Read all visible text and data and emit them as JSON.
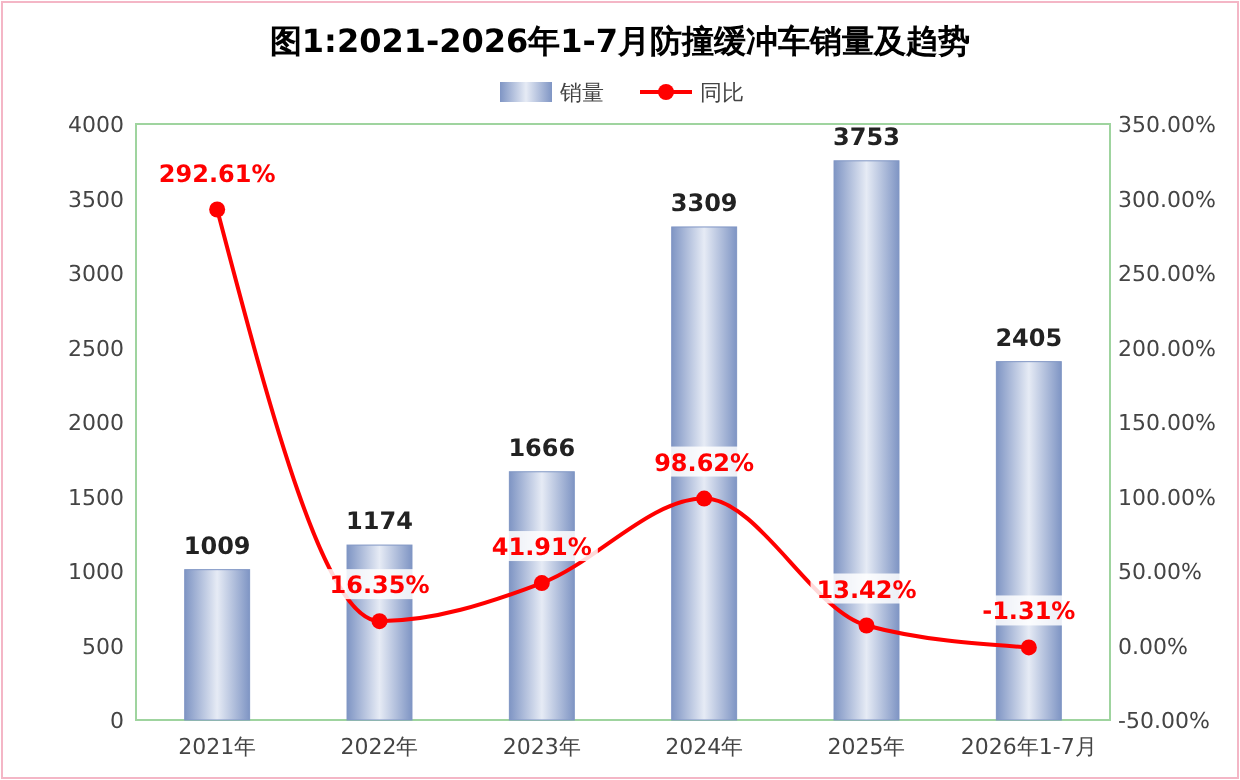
{
  "chart_data": {
    "type": "bar",
    "title": "图1:2021-2026年1-7月防撞缓冲车销量及趋势",
    "categories": [
      "2021年",
      "2022年",
      "2023年",
      "2024年",
      "2025年",
      "2026年1-7月"
    ],
    "series": [
      {
        "name": "销量",
        "color": "#7f95c4",
        "values": [
          1009,
          1174,
          1666,
          3309,
          3753,
          2405
        ],
        "value_labels": [
          "1009",
          "1174",
          "1666",
          "3309",
          "3753",
          "2405"
        ]
      },
      {
        "name": "同比",
        "type": "line",
        "axis": "y2",
        "color": "#ff0000",
        "values": [
          292.61,
          16.35,
          41.91,
          98.62,
          13.42,
          -1.31
        ],
        "value_labels": [
          "292.61%",
          "16.35%",
          "41.91%",
          "98.62%",
          "13.42%",
          "-1.31%"
        ]
      }
    ],
    "ylim": [
      0,
      4000
    ],
    "yticks": [
      0,
      500,
      1000,
      1500,
      2000,
      2500,
      3000,
      3500,
      4000
    ],
    "y2lim": [
      -50,
      350
    ],
    "y2ticks": [
      {
        "value": -50,
        "label": "-50.00%"
      },
      {
        "value": 0,
        "label": "0.00%"
      },
      {
        "value": 50,
        "label": "50.00%"
      },
      {
        "value": 100,
        "label": "100.00%"
      },
      {
        "value": 150,
        "label": "150.00%"
      },
      {
        "value": 200,
        "label": "200.00%"
      },
      {
        "value": 250,
        "label": "250.00%"
      },
      {
        "value": 300,
        "label": "300.00%"
      },
      {
        "value": 350,
        "label": "350.00%"
      }
    ],
    "legend": "top",
    "marker": "circle",
    "line_style": "solid",
    "grid": false
  }
}
